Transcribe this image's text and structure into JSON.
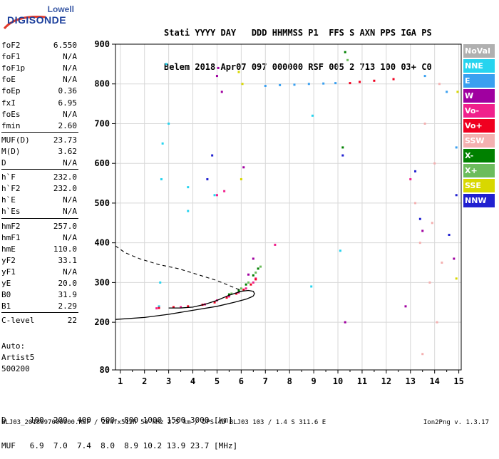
{
  "logo": {
    "line1": "Lowell",
    "line2": "DIGISONDE"
  },
  "header": {
    "line1": "Stati YYYY DAY   DDD HHMMSS P1  FFS S AXN PPS IGA PS",
    "line2": "Belem 2018 Apr07 097 000000 RSF 005 2 713 100 03+ C0"
  },
  "params_group1": [
    {
      "k": "foF2",
      "v": "6.550"
    },
    {
      "k": "foF1",
      "v": "N/A"
    },
    {
      "k": "foF1p",
      "v": "N/A"
    },
    {
      "k": "foE",
      "v": "N/A"
    },
    {
      "k": "foEp",
      "v": "0.36"
    },
    {
      "k": "fxI",
      "v": "6.95"
    },
    {
      "k": "foEs",
      "v": "N/A"
    },
    {
      "k": "fmin",
      "v": "2.60"
    }
  ],
  "params_group2": [
    {
      "k": "MUF(D)",
      "v": "23.73"
    },
    {
      "k": "M(D)",
      "v": "3.62"
    },
    {
      "k": "D",
      "v": "N/A"
    }
  ],
  "params_group3": [
    {
      "k": "h`F",
      "v": "232.0"
    },
    {
      "k": "h`F2",
      "v": "232.0"
    },
    {
      "k": "h`E",
      "v": "N/A"
    },
    {
      "k": "h`Es",
      "v": "N/A"
    }
  ],
  "params_group4": [
    {
      "k": "hmF2",
      "v": "257.0"
    },
    {
      "k": "hmF1",
      "v": "N/A"
    },
    {
      "k": "hmE",
      "v": "110.0"
    },
    {
      "k": "yF2",
      "v": "33.1"
    },
    {
      "k": "yF1",
      "v": "N/A"
    },
    {
      "k": "yE",
      "v": "20.0"
    },
    {
      "k": "B0",
      "v": "31.9"
    },
    {
      "k": "B1",
      "v": "2.29"
    }
  ],
  "params_group5": [
    {
      "k": "C-level",
      "v": "22"
    }
  ],
  "auto": {
    "line1": "Auto:",
    "line2": "Artist5",
    "line3": "500200"
  },
  "legend": [
    {
      "label": "NoVal",
      "color": "#b0b0b0"
    },
    {
      "label": "NNE",
      "color": "#27d4ef"
    },
    {
      "label": "E",
      "color": "#3aa0f0"
    },
    {
      "label": "W",
      "color": "#a000a0"
    },
    {
      "label": "Vo-",
      "color": "#f0208c"
    },
    {
      "label": "Vo+",
      "color": "#f00020"
    },
    {
      "label": "SSW",
      "color": "#f4b0b0"
    },
    {
      "label": "X-",
      "color": "#008000"
    },
    {
      "label": "X+",
      "color": "#6cbc5c"
    },
    {
      "label": "SSE",
      "color": "#d8d800"
    },
    {
      "label": "NNW",
      "color": "#2020d0"
    }
  ],
  "dmuf": {
    "line1": "D     100  200  400  600  800 1000 1500 3000 [km]",
    "line2": "MUF   6.9  7.0  7.4  8.0  8.9 10.2 13.9 23.7 [MHz]"
  },
  "footer": "BLJ03_2018097000000.RSF / 284fx512h 50 kHz 2.5 km / DPS-4D BLJ03 103 / 1.4 S 311.6 E",
  "version": "Ion2Png v. 1.3.17",
  "chart_data": {
    "type": "scatter",
    "xlim": [
      0.8,
      15.1
    ],
    "ylim": [
      80,
      900
    ],
    "x_ticks": [
      1,
      2,
      3,
      4,
      5,
      6,
      7,
      8,
      9,
      10,
      11,
      12,
      13,
      14,
      15
    ],
    "y_ticks": [
      80,
      200,
      300,
      400,
      500,
      600,
      700,
      800,
      900
    ],
    "grid": true,
    "legend_position": "right",
    "series": [
      {
        "name": "NNE",
        "color": "#27d4ef",
        "points": [
          [
            2.6,
            240
          ],
          [
            2.65,
            300
          ],
          [
            2.7,
            560
          ],
          [
            2.75,
            650
          ],
          [
            2.9,
            850
          ],
          [
            3.0,
            700
          ],
          [
            3.8,
            480
          ],
          [
            3.8,
            540
          ],
          [
            4.9,
            520
          ],
          [
            8.9,
            290
          ],
          [
            8.95,
            720
          ],
          [
            10.1,
            380
          ]
        ]
      },
      {
        "name": "E",
        "color": "#3aa0f0",
        "points": [
          [
            7.0,
            795
          ],
          [
            7.6,
            797
          ],
          [
            8.2,
            798
          ],
          [
            8.8,
            800
          ],
          [
            9.4,
            801
          ],
          [
            9.9,
            802
          ],
          [
            13.6,
            820
          ],
          [
            14.5,
            780
          ],
          [
            14.9,
            640
          ]
        ]
      },
      {
        "name": "W",
        "color": "#a000a0",
        "points": [
          [
            5.0,
            820
          ],
          [
            5.05,
            840
          ],
          [
            5.2,
            780
          ],
          [
            6.1,
            590
          ],
          [
            6.3,
            320
          ],
          [
            6.5,
            360
          ],
          [
            10.3,
            200
          ],
          [
            12.8,
            240
          ],
          [
            13.5,
            430
          ],
          [
            14.8,
            360
          ]
        ]
      },
      {
        "name": "Vo-",
        "color": "#f0208c",
        "points": [
          [
            2.5,
            235
          ],
          [
            3.5,
            238
          ],
          [
            4.5,
            245
          ],
          [
            5.0,
            255
          ],
          [
            5.5,
            265
          ],
          [
            5.9,
            275
          ],
          [
            6.2,
            285
          ],
          [
            6.5,
            300
          ],
          [
            6.6,
            310
          ],
          [
            5.0,
            520
          ],
          [
            5.3,
            530
          ],
          [
            7.4,
            395
          ],
          [
            13.0,
            560
          ]
        ]
      },
      {
        "name": "Vo+",
        "color": "#f00020",
        "points": [
          [
            2.6,
            236
          ],
          [
            3.2,
            238
          ],
          [
            3.8,
            240
          ],
          [
            4.4,
            244
          ],
          [
            4.9,
            250
          ],
          [
            5.4,
            262
          ],
          [
            5.8,
            272
          ],
          [
            6.1,
            282
          ],
          [
            6.4,
            295
          ],
          [
            6.6,
            308
          ],
          [
            10.5,
            802
          ],
          [
            10.9,
            805
          ],
          [
            11.5,
            808
          ],
          [
            12.3,
            812
          ]
        ]
      },
      {
        "name": "SSW",
        "color": "#f4b0b0",
        "points": [
          [
            13.2,
            500
          ],
          [
            13.4,
            400
          ],
          [
            13.6,
            700
          ],
          [
            13.8,
            300
          ],
          [
            14.0,
            600
          ],
          [
            14.2,
            800
          ],
          [
            14.1,
            200
          ],
          [
            13.9,
            450
          ],
          [
            14.3,
            350
          ],
          [
            13.5,
            120
          ]
        ]
      },
      {
        "name": "X-",
        "color": "#008000",
        "points": [
          [
            5.5,
            270
          ],
          [
            5.9,
            280
          ],
          [
            6.2,
            295
          ],
          [
            6.5,
            318
          ],
          [
            6.7,
            335
          ],
          [
            10.2,
            640
          ],
          [
            10.3,
            880
          ]
        ]
      },
      {
        "name": "X+",
        "color": "#6cbc5c",
        "points": [
          [
            5.6,
            272
          ],
          [
            6.0,
            285
          ],
          [
            6.3,
            300
          ],
          [
            6.6,
            325
          ],
          [
            6.8,
            340
          ],
          [
            10.4,
            860
          ]
        ]
      },
      {
        "name": "SSE",
        "color": "#d8d800",
        "points": [
          [
            6.0,
            560
          ],
          [
            5.9,
            830
          ],
          [
            6.05,
            800
          ],
          [
            14.9,
            310
          ],
          [
            14.95,
            780
          ]
        ]
      },
      {
        "name": "NNW",
        "color": "#2020d0",
        "points": [
          [
            4.6,
            560
          ],
          [
            4.8,
            620
          ],
          [
            10.2,
            620
          ],
          [
            13.2,
            580
          ],
          [
            13.4,
            460
          ],
          [
            14.6,
            420
          ],
          [
            14.9,
            520
          ]
        ]
      }
    ],
    "profile_curve": {
      "style": "solid",
      "points": [
        [
          0.8,
          207
        ],
        [
          2.0,
          212
        ],
        [
          3.0,
          220
        ],
        [
          4.0,
          230
        ],
        [
          5.0,
          240
        ],
        [
          5.7,
          250
        ],
        [
          6.2,
          258
        ],
        [
          6.4,
          263
        ],
        [
          6.5,
          266
        ],
        [
          6.55,
          272
        ],
        [
          6.5,
          278
        ],
        [
          6.3,
          280
        ],
        [
          6.0,
          278
        ],
        [
          5.5,
          268
        ],
        [
          5.0,
          255
        ],
        [
          4.5,
          245
        ],
        [
          4.0,
          238
        ],
        [
          3.5,
          236
        ],
        [
          3.0,
          236
        ]
      ]
    },
    "profile_curve_dashed": {
      "style": "dashed",
      "points": [
        [
          0.8,
          392
        ],
        [
          1.2,
          375
        ],
        [
          1.8,
          360
        ],
        [
          2.6,
          345
        ],
        [
          3.4,
          335
        ],
        [
          4.2,
          320
        ],
        [
          5.0,
          305
        ],
        [
          5.6,
          290
        ],
        [
          6.0,
          280
        ]
      ]
    }
  }
}
